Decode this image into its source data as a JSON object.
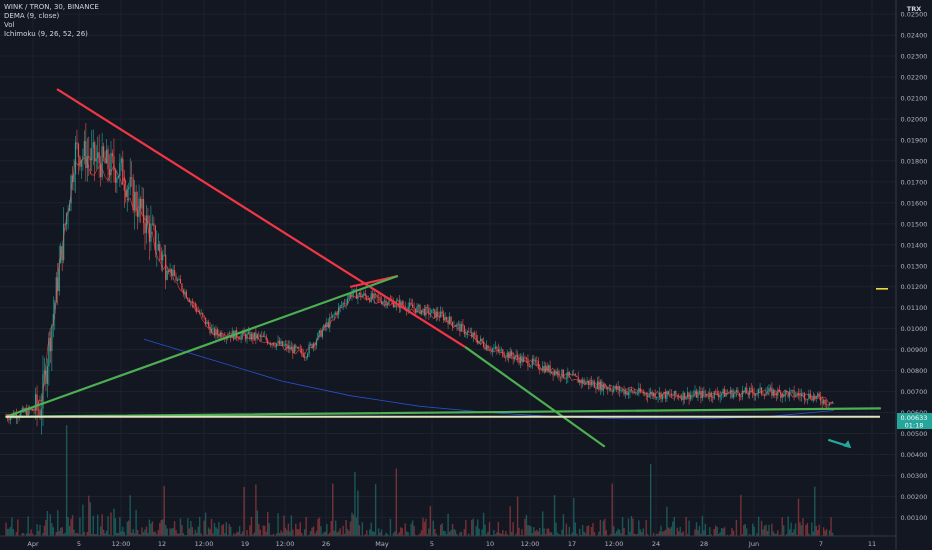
{
  "header": {
    "symbol_line": "WINK / TRON, 30, BINANCE",
    "indicator_1": "DEMA (9, close)",
    "indicator_2": "Vol",
    "indicator_3": "Ichimoku (9, 26, 52, 26)",
    "currency": "TRX"
  },
  "price_tag": {
    "last_price": "0.00633",
    "countdown": "01:18"
  },
  "chart_data": {
    "type": "line",
    "title": "WINK / TRON, 30, BINANCE",
    "xlabel": "",
    "ylabel": "",
    "y_ticks": [
      "0.02500",
      "0.02400",
      "0.02300",
      "0.02200",
      "0.02100",
      "0.02000",
      "0.01900",
      "0.01800",
      "0.01700",
      "0.01600",
      "0.01500",
      "0.01400",
      "0.01300",
      "0.01200",
      "0.01100",
      "0.01000",
      "0.00900",
      "0.00800",
      "0.00700",
      "0.00600",
      "0.00500",
      "0.00400",
      "0.00300",
      "0.00200",
      "0.00100"
    ],
    "x_ticks": [
      "Apr",
      "5",
      "12:00",
      "12",
      "12:00",
      "19",
      "12:00",
      "26",
      "May",
      "5",
      "10",
      "12:00",
      "17",
      "12:00",
      "24",
      "28",
      "Jun",
      "7",
      "11"
    ],
    "ylim": [
      0.0004,
      0.0251
    ],
    "grid": true,
    "series": [
      {
        "name": "price",
        "x": [
          0,
          3,
          6,
          10,
          14,
          18,
          22,
          26,
          30,
          34,
          38,
          42,
          46,
          50,
          54,
          58,
          62,
          66,
          70,
          72
        ],
        "values": [
          0.0058,
          0.0062,
          0.0185,
          0.0175,
          0.013,
          0.0098,
          0.0096,
          0.0088,
          0.0117,
          0.0112,
          0.0106,
          0.0091,
          0.0083,
          0.0075,
          0.007,
          0.0068,
          0.0069,
          0.007,
          0.0068,
          0.0064
        ]
      },
      {
        "name": "DEMA (9, close)",
        "x": [
          0,
          3,
          6,
          10,
          14,
          18,
          22,
          26,
          30,
          34,
          38,
          42,
          46,
          50,
          54,
          58,
          62,
          66,
          70,
          72
        ],
        "values": [
          0.0058,
          0.0063,
          0.018,
          0.0172,
          0.0128,
          0.0098,
          0.0095,
          0.0088,
          0.0115,
          0.0111,
          0.0105,
          0.0091,
          0.0083,
          0.0075,
          0.0071,
          0.0068,
          0.0069,
          0.007,
          0.0068,
          0.0065
        ]
      },
      {
        "name": "Ichimoku",
        "x": [
          12,
          18,
          24,
          30,
          36,
          42,
          48,
          54,
          60,
          66,
          72
        ],
        "values": [
          0.0095,
          0.0085,
          0.0075,
          0.0068,
          0.0063,
          0.006,
          0.0058,
          0.0057,
          0.0057,
          0.0058,
          0.0061
        ]
      }
    ],
    "volume": {
      "ylim": [
        0,
        0.0043
      ]
    },
    "drawings": [
      {
        "kind": "trendline",
        "color": "#f23645",
        "points": [
          [
            4.5,
            0.0214
          ],
          [
            40,
            0.0091
          ]
        ]
      },
      {
        "kind": "trendline",
        "color": "#f23645",
        "points": [
          [
            30,
            0.012
          ],
          [
            34,
            0.0125
          ]
        ]
      },
      {
        "kind": "trendline",
        "color": "#4caf50",
        "points": [
          [
            0,
            0.0058
          ],
          [
            34,
            0.0125
          ]
        ]
      },
      {
        "kind": "trendline",
        "color": "#4caf50",
        "points": [
          [
            40,
            0.0091
          ],
          [
            52,
            0.0044
          ]
        ]
      },
      {
        "kind": "trendline",
        "color": "#4caf50",
        "points": [
          [
            0,
            0.0058
          ],
          [
            76,
            0.0062
          ]
        ]
      },
      {
        "kind": "hline",
        "color": "#e0e3c0",
        "value": 0.0058
      },
      {
        "kind": "arrow",
        "color": "#26a69a",
        "points": [
          [
            71.5,
            0.0047
          ],
          [
            73.5,
            0.0043
          ]
        ]
      }
    ]
  }
}
